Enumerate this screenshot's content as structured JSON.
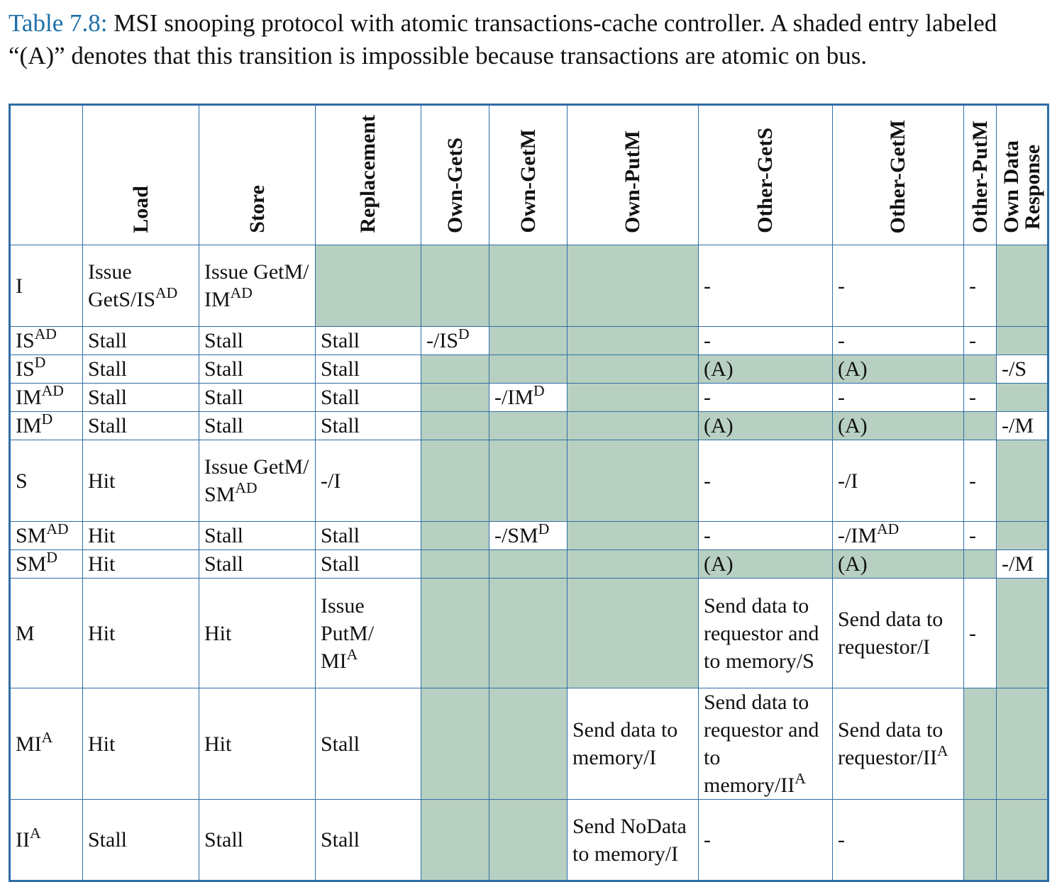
{
  "caption": {
    "label": "Table 7.8:",
    "text": "MSI snooping protocol with atomic transactions-cache controller. A shaded entry labeled “(A)” denotes that this transition is impossible because transactions are atomic on bus."
  },
  "shade_color": "#b8d0c2",
  "border_color": "#2f6ea5",
  "headers": {
    "load": "Load",
    "store": "Store",
    "replacement": "Replacement",
    "own_gets": "Own-GetS",
    "own_getm": "Own-GetM",
    "own_putm": "Own-PutM",
    "other_gets": "Other-GetS",
    "other_getm": "Other-GetM",
    "other_putm": "Other-PutM",
    "own_data_response_1": "Own Data",
    "own_data_response_2": "Response"
  },
  "rows": {
    "I": {
      "state": "I",
      "load": "Issue GetS/IS",
      "load_sup": "AD",
      "store": "Issue GetM/ IM",
      "store_sup": "AD",
      "other_gets": "-",
      "other_getm": "-",
      "other_putm": "-"
    },
    "ISAD": {
      "state": "IS",
      "state_sup": "AD",
      "load": "Stall",
      "store": "Stall",
      "replacement": "Stall",
      "own_gets": "-/IS",
      "own_gets_sup": "D",
      "other_gets": "-",
      "other_getm": "-",
      "other_putm": "-"
    },
    "ISD": {
      "state": "IS",
      "state_sup": "D",
      "load": "Stall",
      "store": "Stall",
      "replacement": "Stall",
      "other_gets": "(A)",
      "other_getm": "(A)",
      "own_data": "-/S"
    },
    "IMAD": {
      "state": "IM",
      "state_sup": "AD",
      "load": "Stall",
      "store": "Stall",
      "replacement": "Stall",
      "own_getm": "-/IM",
      "own_getm_sup": "D",
      "other_gets": "-",
      "other_getm": "-",
      "other_putm": "-"
    },
    "IMD": {
      "state": "IM",
      "state_sup": "D",
      "load": "Stall",
      "store": "Stall",
      "replacement": "Stall",
      "other_gets": "(A)",
      "other_getm": "(A)",
      "own_data": "-/M"
    },
    "S": {
      "state": "S",
      "load": "Hit",
      "store": "Issue GetM/ SM",
      "store_sup": "AD",
      "replacement": "-/I",
      "other_gets": "-",
      "other_getm": "-/I",
      "other_putm": "-"
    },
    "SMAD": {
      "state": "SM",
      "state_sup": "AD",
      "load": "Hit",
      "store": "Stall",
      "replacement": "Stall",
      "own_getm": "-/SM",
      "own_getm_sup": "D",
      "other_gets": "-",
      "other_getm": "-/IM",
      "other_getm_sup": "AD",
      "other_putm": "-"
    },
    "SMD": {
      "state": "SM",
      "state_sup": "D",
      "load": "Hit",
      "store": "Stall",
      "replacement": "Stall",
      "other_gets": "(A)",
      "other_getm": "(A)",
      "own_data": "-/M"
    },
    "M": {
      "state": "M",
      "load": "Hit",
      "store": "Hit",
      "replacement": "Issue PutM/ MI",
      "replacement_sup": "A",
      "other_gets": "Send data to requestor and to memory/S",
      "other_getm": "Send data to requestor/I",
      "other_putm": "-"
    },
    "MIA": {
      "state": "MI",
      "state_sup": "A",
      "load": "Hit",
      "store": "Hit",
      "replacement": "Stall",
      "own_putm": "Send data to memory/I",
      "other_gets": "Send data to requestor and to memory/II",
      "other_gets_sup": "A",
      "other_getm": "Send data to requestor/II",
      "other_getm_sup": "A"
    },
    "IIA": {
      "state": "II",
      "state_sup": "A",
      "load": "Stall",
      "store": "Stall",
      "replacement": "Stall",
      "own_putm": "Send NoData to memory/I",
      "other_gets": "-",
      "other_getm": "-"
    }
  }
}
